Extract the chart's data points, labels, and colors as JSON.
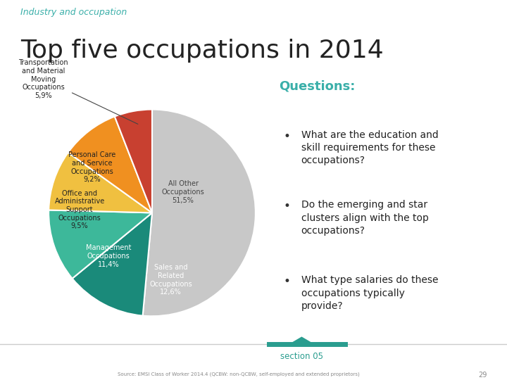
{
  "subtitle": "Industry and occupation",
  "title": "Top five occupations in 2014",
  "subtitle_color": "#3AAFA9",
  "title_color": "#222222",
  "slices": [
    {
      "label": "All Other\nOccupations\n51,5%",
      "value": 51.5,
      "color": "#C8C8C8",
      "text_color": "#444444"
    },
    {
      "label": "Sales and\nRelated\nOccupations\n12,6%",
      "value": 12.6,
      "color": "#1A8A7A",
      "text_color": "#ffffff"
    },
    {
      "label": "Management\nOccupations\n11,4%",
      "value": 11.4,
      "color": "#3DB89A",
      "text_color": "#ffffff"
    },
    {
      "label": "Office and\nAdministrative\nSupport\nOccupations\n9,5%",
      "value": 9.5,
      "color": "#F0C040",
      "text_color": "#222222"
    },
    {
      "label": "Personal Care\nand Service\nOccupations\n9,2%",
      "value": 9.2,
      "color": "#F09020",
      "text_color": "#222222"
    },
    {
      "label": "Transportation\nand Material\nMoving\nOccupations\n5,9%",
      "value": 5.9,
      "color": "#C84030",
      "text_color": "#222222"
    }
  ],
  "questions_title": "Questions:",
  "questions_color": "#3AAFA9",
  "questions": [
    "What are the education and\nskill requirements for these\noccupations?",
    "Do the emerging and star\nclusters align with the top\noccupations?",
    "What type salaries do these\noccupations typically\nprovide?"
  ],
  "source_text": "Source: EMSI Class of Worker 2014.4 (QCBW: non-QCBW, self-employed and extended proprietors)",
  "page_num": "29",
  "section_text": "section 05",
  "section_color": "#2A9D8F",
  "background_color": "#FFFFFF",
  "footer_line_color": "#CCCCCC",
  "footer_highlight_color": "#2A9D8F"
}
